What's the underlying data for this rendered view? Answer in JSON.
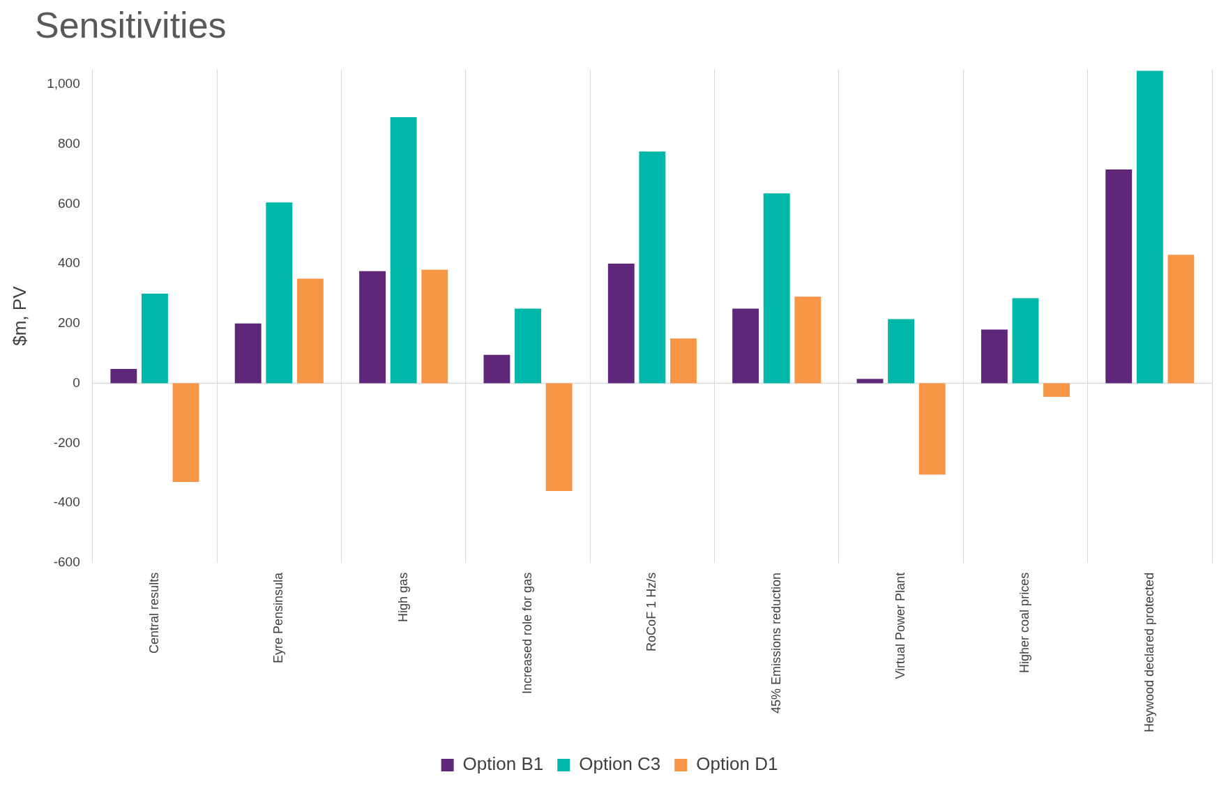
{
  "chart_data": {
    "type": "bar",
    "title": "Sensitivities",
    "ylabel": "$m, PV",
    "categories": [
      "Central results",
      "Eyre Pensinsula",
      "High gas",
      "Increased role for gas",
      "RoCoF 1 Hz/s",
      "45% Emissions reduction",
      "Virtual Power Plant",
      "Higher coal prices",
      "Heywood declared protected"
    ],
    "series": [
      {
        "name": "Option B1",
        "color": "#5f277a",
        "values": [
          48,
          200,
          375,
          95,
          400,
          250,
          15,
          180,
          715
        ]
      },
      {
        "name": "Option C3",
        "color": "#00b8a9",
        "values": [
          300,
          605,
          890,
          250,
          775,
          635,
          215,
          285,
          1045
        ]
      },
      {
        "name": "Option D1",
        "color": "#f79646",
        "values": [
          -330,
          350,
          380,
          -360,
          150,
          290,
          -305,
          -45,
          430
        ]
      }
    ],
    "ylim": [
      -600,
      1050
    ],
    "yticks": [
      -600,
      -400,
      -200,
      0,
      200,
      400,
      600,
      800,
      {
        "value": 1000,
        "label": "1,000"
      }
    ],
    "ref_lines": [
      {
        "axis": "y",
        "value": 0,
        "color": "#d9d9d9"
      }
    ],
    "grid": "x",
    "legend": "bottom"
  }
}
